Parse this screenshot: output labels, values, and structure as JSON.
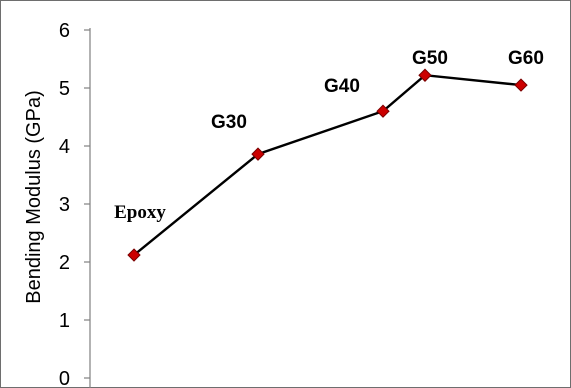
{
  "chart_data": {
    "type": "line",
    "ylabel": "Bending Modulus (GPa)",
    "xlabel": "",
    "ylim": [
      0,
      6
    ],
    "yticks": [
      0,
      1,
      2,
      3,
      4,
      5,
      6
    ],
    "grid": false,
    "legend": "none",
    "series": [
      {
        "points": [
          {
            "label": "Epoxy",
            "y": 2.12
          },
          {
            "label": "G30",
            "y": 3.86
          },
          {
            "label": "G40",
            "y": 4.6
          },
          {
            "label": "G50",
            "y": 5.22
          },
          {
            "label": "G60",
            "y": 5.05
          }
        ]
      }
    ],
    "colors": {
      "line": "#000000",
      "marker_fill": "#cc0000",
      "marker_stroke": "#7a0000",
      "axis": "#808080"
    }
  }
}
